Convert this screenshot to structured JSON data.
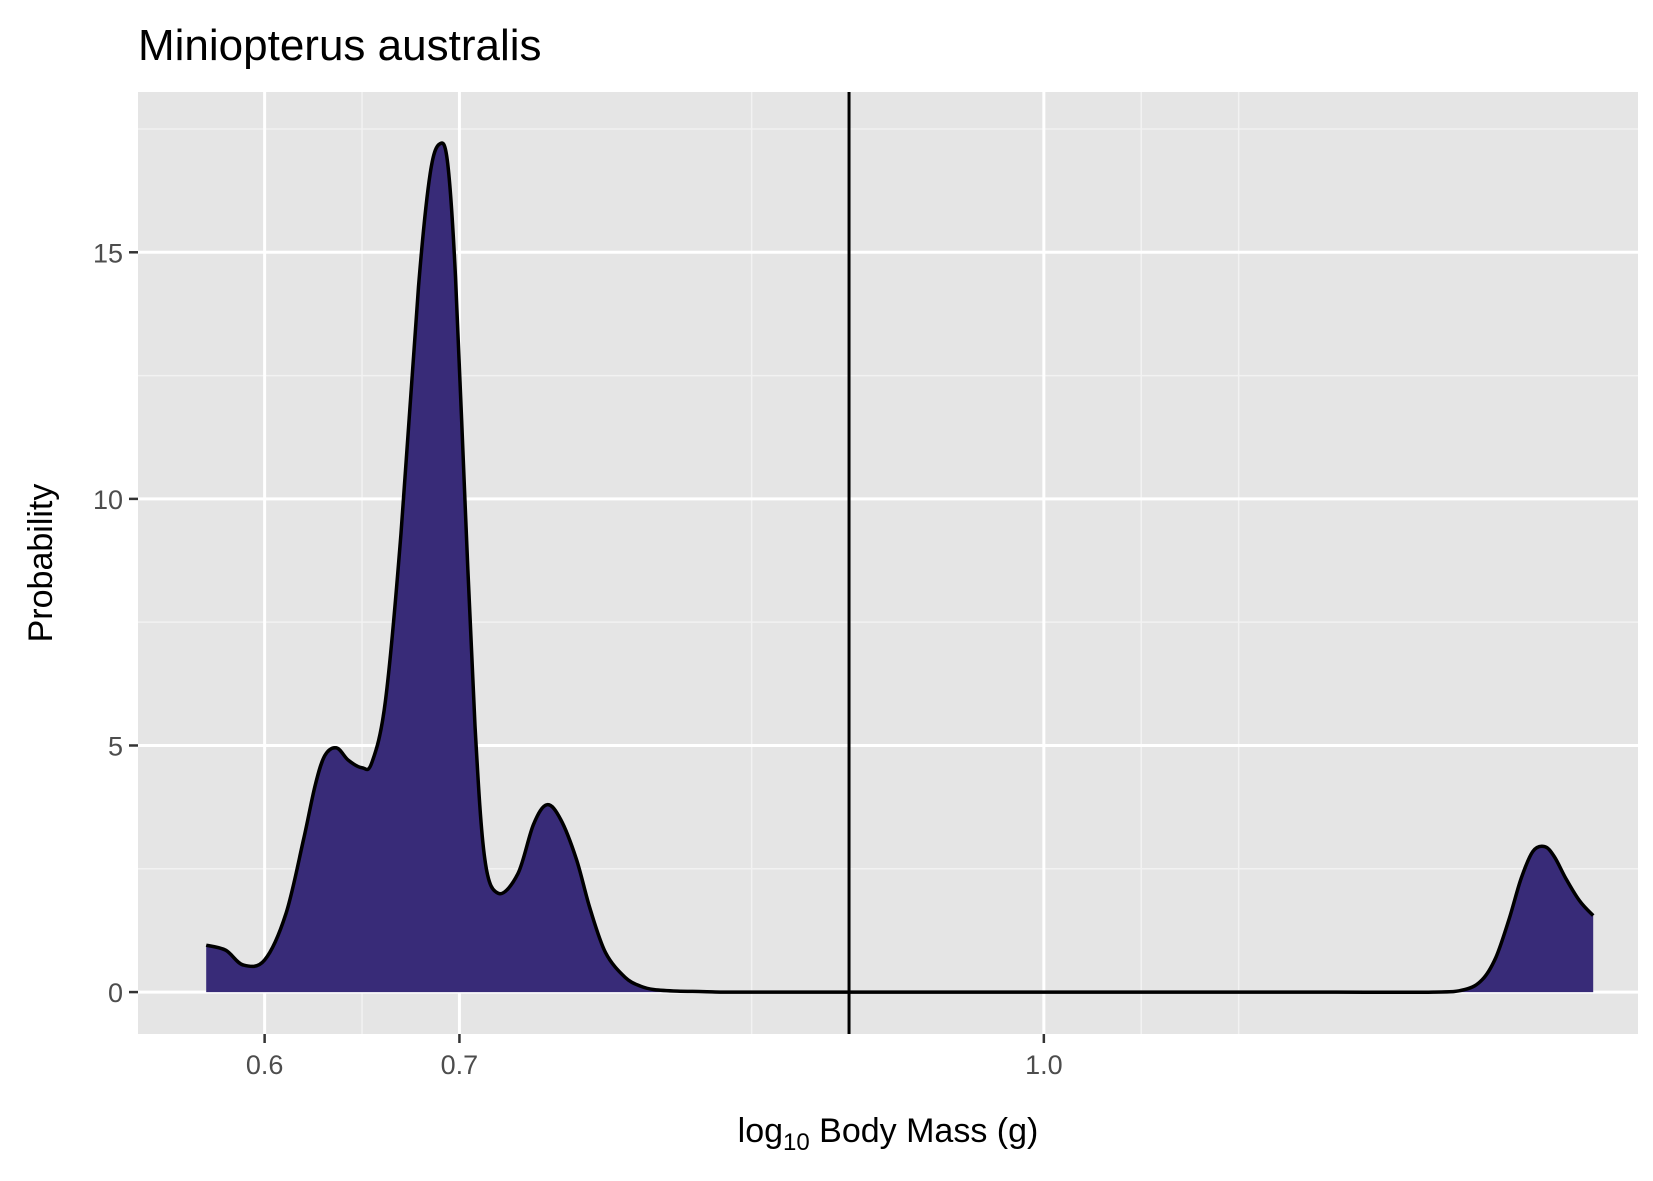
{
  "chart_data": {
    "type": "area",
    "title": "Miniopterus australis",
    "xlabel": {
      "base": "log",
      "subscript": "10",
      "rest": " Body Mass (g)"
    },
    "ylabel": "Probability",
    "x_ticks": [
      {
        "value": 0.6,
        "label": "0.6"
      },
      {
        "value": 0.7,
        "label": "0.7"
      },
      {
        "value": 1.0,
        "label": "1.0"
      }
    ],
    "x_minor_ticks": [
      0.65,
      0.85,
      1.05,
      1.1
    ],
    "y_ticks": [
      {
        "value": 0,
        "label": "0"
      },
      {
        "value": 5,
        "label": "5"
      },
      {
        "value": 10,
        "label": "10"
      },
      {
        "value": 15,
        "label": "15"
      }
    ],
    "y_minor_ticks": [
      2.5,
      7.5,
      12.5,
      17.5
    ],
    "xlim": [
      0.535,
      1.305
    ],
    "ylim": [
      -0.85,
      18.25
    ],
    "vline": 0.9,
    "grid": true,
    "series": [
      {
        "fill": "#382b78",
        "stroke": "#000000",
        "x": [
          0.57,
          0.58,
          0.589,
          0.6,
          0.611,
          0.62,
          0.626,
          0.631,
          0.637,
          0.643,
          0.65,
          0.655,
          0.662,
          0.67,
          0.679,
          0.685,
          0.69,
          0.694,
          0.698,
          0.703,
          0.708,
          0.713,
          0.72,
          0.73,
          0.738,
          0.745,
          0.752,
          0.76,
          0.767,
          0.775,
          0.785,
          0.793,
          0.8,
          0.812,
          0.825,
          0.835,
          0.85,
          0.875,
          0.9,
          0.95,
          1.0,
          1.05,
          1.1,
          1.15,
          1.2,
          1.216,
          1.225,
          1.232,
          1.239,
          1.245,
          1.251,
          1.257,
          1.262,
          1.268,
          1.275,
          1.282
        ],
        "y": [
          0.95,
          0.85,
          0.55,
          0.65,
          1.6,
          3.1,
          4.2,
          4.8,
          4.95,
          4.7,
          4.55,
          4.65,
          5.9,
          9.3,
          14.3,
          16.6,
          17.2,
          16.8,
          14.5,
          9.8,
          5.4,
          2.7,
          2.0,
          2.4,
          3.4,
          3.8,
          3.5,
          2.7,
          1.7,
          0.8,
          0.3,
          0.12,
          0.05,
          0.02,
          0.01,
          0.0,
          0.0,
          0.0,
          0.0,
          0.0,
          0.0,
          0.0,
          0.0,
          0.0,
          0.0,
          0.05,
          0.25,
          0.7,
          1.5,
          2.3,
          2.85,
          2.95,
          2.75,
          2.3,
          1.85,
          1.55
        ]
      }
    ]
  }
}
